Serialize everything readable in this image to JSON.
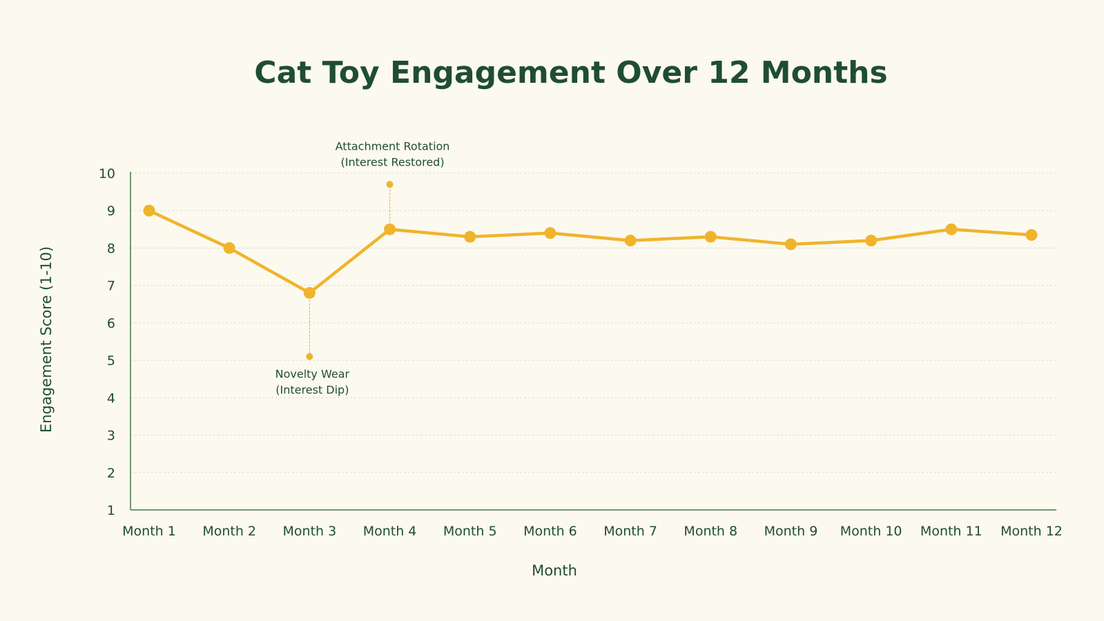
{
  "chart_data": {
    "type": "line",
    "title": "Cat Toy Engagement Over 12 Months",
    "xlabel": "Month",
    "ylabel": "Engagement Score (1-10)",
    "categories": [
      "Month 1",
      "Month 2",
      "Month 3",
      "Month 4",
      "Month 5",
      "Month 6",
      "Month 7",
      "Month 8",
      "Month 9",
      "Month 10",
      "Month 11",
      "Month 12"
    ],
    "series": [
      {
        "values": [
          9.0,
          8.0,
          6.8,
          8.5,
          8.3,
          8.4,
          8.2,
          8.3,
          8.1,
          8.2,
          8.5,
          8.35
        ]
      }
    ],
    "yticks": [
      "1",
      "2",
      "3",
      "4",
      "5",
      "6",
      "7",
      "8",
      "9",
      "10"
    ],
    "ylim": [
      1,
      10
    ],
    "grid": true,
    "colors": {
      "line": "#f0b42c",
      "text": "#1f4d33",
      "axis": "#6f9a6e",
      "grid": "#d9dccb",
      "background": "#fcf9ef"
    },
    "annotations": [
      {
        "category": "Month 3",
        "y": 5.1,
        "lines": [
          "Novelty Wear",
          "(Interest Dip)"
        ],
        "position": "below"
      },
      {
        "category": "Month 4",
        "y": 9.7,
        "lines": [
          "Attachment Rotation",
          "(Interest Restored)"
        ],
        "position": "above"
      }
    ]
  }
}
